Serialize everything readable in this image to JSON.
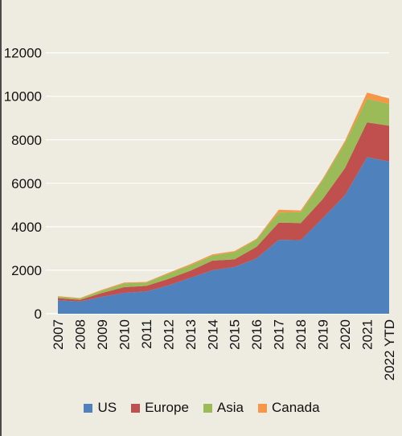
{
  "chart_data": {
    "type": "area",
    "stacked": true,
    "categories": [
      "2007",
      "2008",
      "2009",
      "2010",
      "2011",
      "2012",
      "2013",
      "2014",
      "2015",
      "2016",
      "2017",
      "2018",
      "2019",
      "2020",
      "2021",
      "2022 YTD"
    ],
    "series": [
      {
        "name": "US",
        "color": "#4f81bd",
        "values": [
          620,
          560,
          780,
          960,
          1030,
          1300,
          1650,
          2000,
          2150,
          2550,
          3400,
          3380,
          4400,
          5450,
          7200,
          7000
        ]
      },
      {
        "name": "Europe",
        "color": "#c0504d",
        "values": [
          100,
          80,
          180,
          260,
          250,
          300,
          330,
          440,
          350,
          530,
          790,
          790,
          880,
          1250,
          1600,
          1650
        ]
      },
      {
        "name": "Asia",
        "color": "#9bbb59",
        "values": [
          70,
          60,
          110,
          180,
          150,
          240,
          250,
          230,
          330,
          330,
          460,
          500,
          880,
          1150,
          1090,
          1000
        ]
      },
      {
        "name": "Canada",
        "color": "#f79646",
        "values": [
          20,
          20,
          30,
          30,
          30,
          40,
          50,
          60,
          50,
          40,
          130,
          80,
          60,
          100,
          280,
          250
        ]
      }
    ],
    "yticks": [
      0,
      2000,
      4000,
      6000,
      8000,
      10000,
      12000
    ],
    "ylim": [
      0,
      12800
    ],
    "grid": true,
    "legend": "bottom"
  }
}
